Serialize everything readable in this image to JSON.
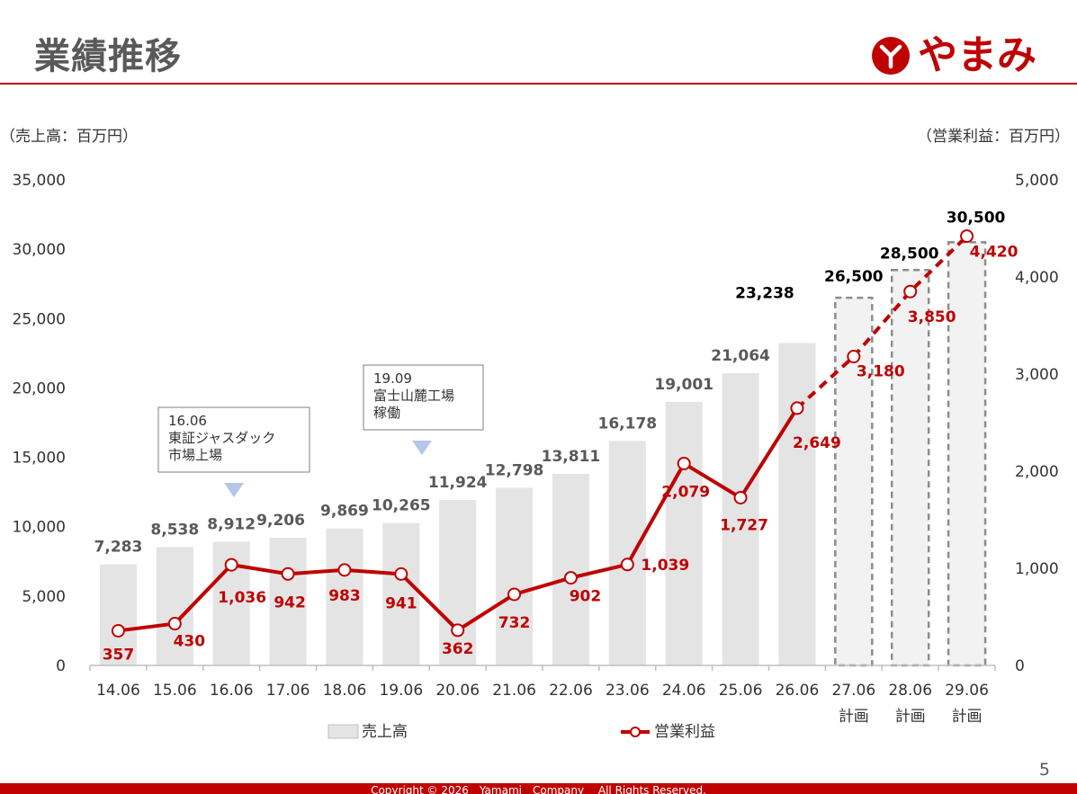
{
  "header": {
    "title": "業績推移",
    "logo_text": "やまみ",
    "brand_color": "#c00000"
  },
  "units": {
    "left": "（売上高：百万円）",
    "right": "（営業利益：百万円）"
  },
  "page_number": "5",
  "footer": {
    "copyright": "Copyright © 2026　Yamami　Company　 All Rights Reserved."
  },
  "chart_data": {
    "type": "bar+line",
    "categories": [
      "14.06",
      "15.06",
      "16.06",
      "17.06",
      "18.06",
      "19.06",
      "20.06",
      "21.06",
      "22.06",
      "23.06",
      "24.06",
      "25.06",
      "26.06",
      "27.06",
      "28.06",
      "29.06"
    ],
    "category_sublabels": [
      "",
      "",
      "",
      "",
      "",
      "",
      "",
      "",
      "",
      "",
      "",
      "",
      "",
      "計画",
      "計画",
      "計画"
    ],
    "plan_from_index": 13,
    "series": [
      {
        "name": "売上高",
        "type": "bar",
        "axis": "left",
        "values": [
          7283,
          8538,
          8912,
          9206,
          9869,
          10265,
          11924,
          12798,
          13811,
          16178,
          19001,
          21064,
          23238,
          26500,
          28500,
          30500
        ],
        "labels": [
          "7,283",
          "8,538",
          "8,912",
          "9,206",
          "9,869",
          "10,265",
          "11,924",
          "12,798",
          "13,811",
          "16,178",
          "19,001",
          "21,064",
          "23,238",
          "26,500",
          "28,500",
          "30,500"
        ],
        "color": "#e4e4e4"
      },
      {
        "name": "営業利益",
        "type": "line",
        "axis": "right",
        "values": [
          357,
          430,
          1036,
          942,
          983,
          941,
          362,
          732,
          902,
          1039,
          2079,
          1727,
          2649,
          3180,
          3850,
          4420
        ],
        "labels": [
          "357",
          "430",
          "1,036",
          "942",
          "983",
          "941",
          "362",
          "732",
          "902",
          "1,039",
          "2,079",
          "1,727",
          "2,649",
          "3,180",
          "3,850",
          "4,420"
        ],
        "color": "#c00000"
      }
    ],
    "y_left": {
      "min": 0,
      "max": 35000,
      "ticks": [
        "0",
        "5,000",
        "10,000",
        "15,000",
        "20,000",
        "25,000",
        "30,000",
        "35,000"
      ]
    },
    "y_right": {
      "min": 0,
      "max": 5000,
      "ticks": [
        "0",
        "1,000",
        "2,000",
        "3,000",
        "4,000",
        "5,000"
      ]
    },
    "annotations": [
      {
        "category_index": 2,
        "lines": [
          "16.06",
          "東証ジャスダック",
          "市場上場"
        ]
      },
      {
        "category_index": 5,
        "lines": [
          "19.09",
          "富士山麓工場",
          "稼働"
        ]
      }
    ],
    "legend_position": "bottom",
    "grid": false
  }
}
